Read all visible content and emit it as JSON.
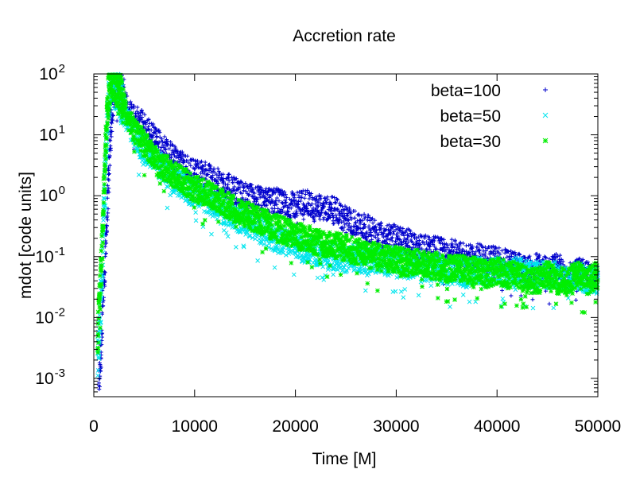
{
  "chart_data": {
    "type": "scatter",
    "title": "Accretion rate",
    "xlabel": "Time [M]",
    "ylabel": "mdot [code units]",
    "xlim": [
      0,
      50000
    ],
    "ylim": [
      0.0005,
      100
    ],
    "yscale": "log",
    "legend_position": "top-right",
    "x_ticks": [
      {
        "value": 0,
        "label": "0"
      },
      {
        "value": 10000,
        "label": "10000"
      },
      {
        "value": 20000,
        "label": "20000"
      },
      {
        "value": 30000,
        "label": "30000"
      },
      {
        "value": 40000,
        "label": "40000"
      },
      {
        "value": 50000,
        "label": "50000"
      }
    ],
    "y_ticks": [
      {
        "value": 0.001,
        "base": "10",
        "exp": "-3"
      },
      {
        "value": 0.01,
        "base": "10",
        "exp": "-2"
      },
      {
        "value": 0.1,
        "base": "10",
        "exp": "-1"
      },
      {
        "value": 1,
        "base": "10",
        "exp": "0"
      },
      {
        "value": 10,
        "base": "10",
        "exp": "1"
      },
      {
        "value": 100,
        "base": "10",
        "exp": "2"
      }
    ],
    "series": [
      {
        "name": "beta=100",
        "marker": "plus",
        "color": "#0000cc",
        "x": [
          500,
          700,
          900,
          1100,
          1300,
          1500,
          1700,
          2000,
          2500,
          3000,
          3500,
          4000,
          5000,
          6000,
          7000,
          8000,
          9000,
          10000,
          11000,
          12000,
          13000,
          14000,
          15000,
          16000,
          17000,
          18000,
          19000,
          20000,
          21000,
          22000,
          23000,
          24000,
          25000,
          26000,
          27000,
          28000,
          29000,
          30000,
          31000,
          32000,
          33000,
          34000,
          35000,
          36000,
          37000,
          38000,
          39000,
          40000,
          41000,
          42000,
          43000,
          44000,
          45000,
          46000,
          47000,
          48000,
          49000,
          50000
        ],
        "values": [
          0.0006,
          0.003,
          0.02,
          0.08,
          0.5,
          2.5,
          15,
          60,
          70,
          40,
          25,
          20,
          14,
          9,
          6,
          4,
          3,
          2.4,
          2.2,
          1.8,
          1.5,
          1.2,
          1.0,
          0.9,
          0.8,
          0.85,
          0.7,
          0.7,
          0.8,
          0.6,
          0.65,
          0.55,
          0.4,
          0.35,
          0.3,
          0.25,
          0.22,
          0.2,
          0.18,
          0.15,
          0.14,
          0.13,
          0.12,
          0.12,
          0.1,
          0.1,
          0.09,
          0.09,
          0.08,
          0.07,
          0.06,
          0.07,
          0.06,
          0.07,
          0.05,
          0.06,
          0.05,
          0.05
        ]
      },
      {
        "name": "beta=50",
        "marker": "cross",
        "color": "#00e5ee",
        "x": [
          400,
          600,
          800,
          1000,
          1200,
          1500,
          1800,
          2200,
          2600,
          3000,
          3500,
          4000,
          5000,
          6000,
          7000,
          8000,
          9000,
          10000,
          11000,
          12000,
          13000,
          14000,
          15000,
          16000,
          17000,
          18000,
          19000,
          20000,
          21000,
          22000,
          23000,
          24000,
          25000,
          26000,
          27000,
          28000,
          29000,
          30000,
          31000,
          32000,
          33000,
          34000,
          35000,
          36000,
          37000,
          38000,
          39000,
          40000,
          41000,
          42000,
          43000,
          44000,
          45000,
          46000,
          47000,
          48000,
          49000,
          50000
        ],
        "values": [
          0.002,
          0.01,
          0.05,
          0.5,
          5,
          40,
          80,
          60,
          40,
          25,
          15,
          10,
          6,
          4,
          2.5,
          1.8,
          1.4,
          1.1,
          0.9,
          0.7,
          0.55,
          0.45,
          0.38,
          0.3,
          0.25,
          0.2,
          0.17,
          0.15,
          0.13,
          0.12,
          0.11,
          0.1,
          0.09,
          0.1,
          0.08,
          0.09,
          0.08,
          0.09,
          0.07,
          0.08,
          0.06,
          0.07,
          0.05,
          0.06,
          0.05,
          0.06,
          0.05,
          0.06,
          0.05,
          0.06,
          0.05,
          0.05,
          0.05,
          0.05,
          0.04,
          0.05,
          0.04,
          0.04
        ]
      },
      {
        "name": "beta=30",
        "marker": "star",
        "color": "#00ee00",
        "x": [
          400,
          600,
          800,
          1000,
          1200,
          1500,
          1800,
          2200,
          2600,
          3000,
          3500,
          4000,
          5000,
          6000,
          7000,
          8000,
          9000,
          10000,
          11000,
          12000,
          13000,
          14000,
          15000,
          16000,
          17000,
          18000,
          19000,
          20000,
          21000,
          22000,
          23000,
          24000,
          25000,
          26000,
          27000,
          28000,
          29000,
          30000,
          31000,
          32000,
          33000,
          34000,
          35000,
          36000,
          37000,
          38000,
          39000,
          40000,
          41000,
          42000,
          43000,
          44000,
          45000,
          46000,
          47000,
          48000,
          49000,
          50000
        ],
        "values": [
          0.005,
          0.02,
          0.1,
          1,
          8,
          60,
          90,
          70,
          50,
          30,
          18,
          12,
          7,
          4.5,
          3,
          2.2,
          1.7,
          1.3,
          1.1,
          0.9,
          0.75,
          0.6,
          0.5,
          0.42,
          0.36,
          0.3,
          0.26,
          0.22,
          0.2,
          0.18,
          0.16,
          0.15,
          0.14,
          0.12,
          0.11,
          0.1,
          0.09,
          0.09,
          0.08,
          0.08,
          0.07,
          0.07,
          0.06,
          0.07,
          0.06,
          0.06,
          0.05,
          0.06,
          0.05,
          0.05,
          0.04,
          0.04,
          0.05,
          0.04,
          0.04,
          0.05,
          0.04,
          0.05
        ]
      }
    ]
  }
}
